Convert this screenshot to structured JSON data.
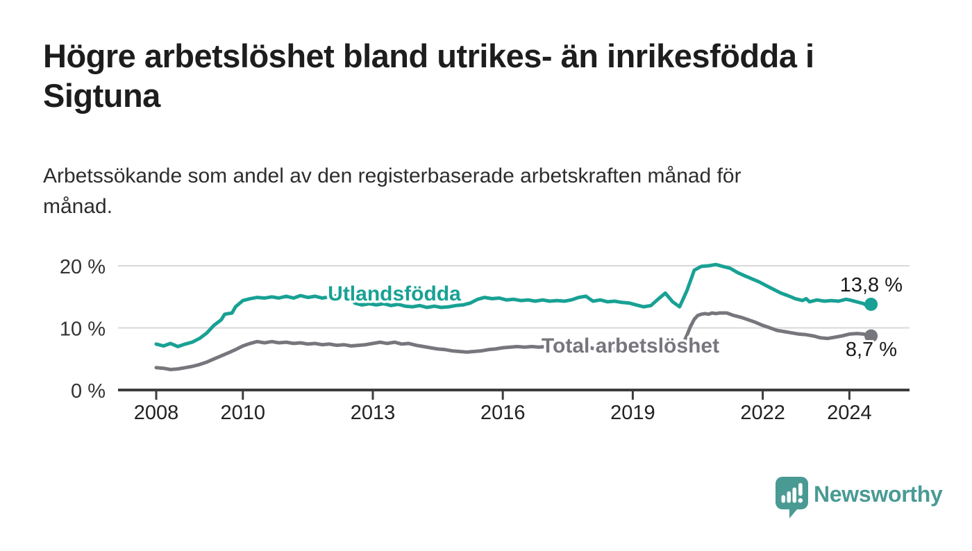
{
  "page": {
    "title_line1": "Högre arbetslöshet bland utrikes- än inrikesfödda i",
    "title_line2": "Sigtuna",
    "subtitle_line1": "Arbetssökande som andel av den registerbaserade arbetskraften månad för",
    "subtitle_line2": "månad."
  },
  "branding": {
    "logo_text": "Newsworthy",
    "logo_color": "#4a9a94",
    "logo_icon": "newsworthy-pin-icon"
  },
  "colors": {
    "background": "#ffffff",
    "title_text": "#1d1d1d",
    "subtitle_text": "#2d2d2d",
    "gridline": "#d8d8d8",
    "axis_line": "#3d3d3d",
    "tick_text": "#222222",
    "value_label_text": "#1a1a1a",
    "series_utlandsfodda": "#18a194",
    "series_total": "#76767d"
  },
  "chart_data": {
    "type": "line",
    "unit": "%",
    "x_axis": {
      "range": [
        2007.1,
        2025.4
      ],
      "ticks": [
        2008,
        2010,
        2013,
        2016,
        2019,
        2022,
        2024
      ],
      "tick_labels": [
        "2008",
        "2010",
        "2013",
        "2016",
        "2019",
        "2022",
        "2024"
      ]
    },
    "y_axis": {
      "range": [
        0,
        22
      ],
      "ticks": [
        0,
        10,
        20
      ],
      "tick_labels": [
        "0 %",
        "10 %",
        "20 %"
      ],
      "gridlines": [
        10,
        20
      ],
      "grid_on": true
    },
    "legend_position": "inline-labels-on-chart",
    "series": [
      {
        "key": "utlandsfodda",
        "name": "Utlandsfödda",
        "color": "#18a194",
        "end_value": 13.8,
        "end_label": "13,8 %",
        "points": [
          [
            2008.0,
            7.4
          ],
          [
            2008.17,
            7.1
          ],
          [
            2008.33,
            7.5
          ],
          [
            2008.5,
            7.0
          ],
          [
            2008.67,
            7.4
          ],
          [
            2008.83,
            7.7
          ],
          [
            2009.0,
            8.3
          ],
          [
            2009.17,
            9.2
          ],
          [
            2009.33,
            10.4
          ],
          [
            2009.5,
            11.3
          ],
          [
            2009.58,
            12.2
          ],
          [
            2009.75,
            12.4
          ],
          [
            2009.83,
            13.4
          ],
          [
            2010.0,
            14.4
          ],
          [
            2010.17,
            14.7
          ],
          [
            2010.33,
            14.9
          ],
          [
            2010.5,
            14.8
          ],
          [
            2010.67,
            15.0
          ],
          [
            2010.83,
            14.8
          ],
          [
            2011.0,
            15.1
          ],
          [
            2011.17,
            14.8
          ],
          [
            2011.33,
            15.2
          ],
          [
            2011.5,
            14.9
          ],
          [
            2011.67,
            15.1
          ],
          [
            2011.83,
            14.8
          ],
          [
            2012.0,
            15.0
          ],
          [
            2012.17,
            15.2
          ],
          [
            2012.33,
            14.9
          ],
          [
            2012.5,
            15.2
          ],
          [
            2012.58,
            14.0
          ],
          [
            2012.75,
            13.7
          ],
          [
            2012.92,
            13.9
          ],
          [
            2013.08,
            13.7
          ],
          [
            2013.25,
            13.9
          ],
          [
            2013.42,
            13.6
          ],
          [
            2013.58,
            13.8
          ],
          [
            2013.75,
            13.5
          ],
          [
            2013.92,
            13.4
          ],
          [
            2014.08,
            13.6
          ],
          [
            2014.25,
            13.3
          ],
          [
            2014.42,
            13.5
          ],
          [
            2014.58,
            13.3
          ],
          [
            2014.75,
            13.4
          ],
          [
            2014.92,
            13.6
          ],
          [
            2015.08,
            13.7
          ],
          [
            2015.25,
            14.0
          ],
          [
            2015.42,
            14.6
          ],
          [
            2015.58,
            14.9
          ],
          [
            2015.75,
            14.7
          ],
          [
            2015.92,
            14.8
          ],
          [
            2016.08,
            14.5
          ],
          [
            2016.25,
            14.6
          ],
          [
            2016.42,
            14.4
          ],
          [
            2016.58,
            14.5
          ],
          [
            2016.75,
            14.3
          ],
          [
            2016.92,
            14.5
          ],
          [
            2017.08,
            14.3
          ],
          [
            2017.25,
            14.4
          ],
          [
            2017.42,
            14.3
          ],
          [
            2017.58,
            14.5
          ],
          [
            2017.75,
            14.9
          ],
          [
            2017.92,
            15.1
          ],
          [
            2018.08,
            14.3
          ],
          [
            2018.25,
            14.5
          ],
          [
            2018.42,
            14.2
          ],
          [
            2018.58,
            14.3
          ],
          [
            2018.75,
            14.1
          ],
          [
            2018.92,
            14.0
          ],
          [
            2019.08,
            13.7
          ],
          [
            2019.25,
            13.4
          ],
          [
            2019.42,
            13.6
          ],
          [
            2019.58,
            14.6
          ],
          [
            2019.75,
            15.6
          ],
          [
            2019.92,
            14.2
          ],
          [
            2020.08,
            13.4
          ],
          [
            2020.25,
            16.0
          ],
          [
            2020.42,
            19.3
          ],
          [
            2020.58,
            19.9
          ],
          [
            2020.75,
            20.0
          ],
          [
            2020.92,
            20.2
          ],
          [
            2021.08,
            19.9
          ],
          [
            2021.25,
            19.6
          ],
          [
            2021.42,
            18.9
          ],
          [
            2021.58,
            18.4
          ],
          [
            2021.75,
            17.9
          ],
          [
            2021.92,
            17.4
          ],
          [
            2022.08,
            16.8
          ],
          [
            2022.25,
            16.2
          ],
          [
            2022.42,
            15.6
          ],
          [
            2022.58,
            15.2
          ],
          [
            2022.75,
            14.7
          ],
          [
            2022.92,
            14.4
          ],
          [
            2023.0,
            14.7
          ],
          [
            2023.08,
            14.2
          ],
          [
            2023.25,
            14.5
          ],
          [
            2023.42,
            14.3
          ],
          [
            2023.58,
            14.4
          ],
          [
            2023.75,
            14.3
          ],
          [
            2023.92,
            14.6
          ],
          [
            2024.0,
            14.5
          ],
          [
            2024.17,
            14.2
          ],
          [
            2024.33,
            13.9
          ],
          [
            2024.42,
            13.5
          ],
          [
            2024.5,
            13.8
          ]
        ]
      },
      {
        "key": "total-arbetsloshet",
        "name": "Total arbetslöshet",
        "color": "#76767d",
        "end_value": 8.7,
        "end_label": "8,7 %",
        "points": [
          [
            2008.0,
            3.6
          ],
          [
            2008.17,
            3.5
          ],
          [
            2008.33,
            3.3
          ],
          [
            2008.5,
            3.4
          ],
          [
            2008.67,
            3.6
          ],
          [
            2008.83,
            3.8
          ],
          [
            2009.0,
            4.1
          ],
          [
            2009.17,
            4.5
          ],
          [
            2009.33,
            5.0
          ],
          [
            2009.5,
            5.5
          ],
          [
            2009.67,
            6.0
          ],
          [
            2009.83,
            6.5
          ],
          [
            2010.0,
            7.1
          ],
          [
            2010.17,
            7.5
          ],
          [
            2010.33,
            7.8
          ],
          [
            2010.5,
            7.6
          ],
          [
            2010.67,
            7.8
          ],
          [
            2010.83,
            7.6
          ],
          [
            2011.0,
            7.7
          ],
          [
            2011.17,
            7.5
          ],
          [
            2011.33,
            7.6
          ],
          [
            2011.5,
            7.4
          ],
          [
            2011.67,
            7.5
          ],
          [
            2011.83,
            7.3
          ],
          [
            2012.0,
            7.4
          ],
          [
            2012.17,
            7.2
          ],
          [
            2012.33,
            7.3
          ],
          [
            2012.5,
            7.1
          ],
          [
            2012.67,
            7.2
          ],
          [
            2012.83,
            7.3
          ],
          [
            2013.0,
            7.5
          ],
          [
            2013.17,
            7.7
          ],
          [
            2013.33,
            7.5
          ],
          [
            2013.5,
            7.7
          ],
          [
            2013.67,
            7.4
          ],
          [
            2013.83,
            7.5
          ],
          [
            2014.0,
            7.2
          ],
          [
            2014.17,
            7.0
          ],
          [
            2014.33,
            6.8
          ],
          [
            2014.5,
            6.6
          ],
          [
            2014.67,
            6.5
          ],
          [
            2014.83,
            6.3
          ],
          [
            2015.0,
            6.2
          ],
          [
            2015.17,
            6.1
          ],
          [
            2015.33,
            6.2
          ],
          [
            2015.5,
            6.3
          ],
          [
            2015.67,
            6.5
          ],
          [
            2015.83,
            6.6
          ],
          [
            2016.0,
            6.8
          ],
          [
            2016.17,
            6.9
          ],
          [
            2016.33,
            7.0
          ],
          [
            2016.5,
            6.9
          ],
          [
            2016.67,
            7.0
          ],
          [
            2016.83,
            6.9
          ],
          [
            2017.0,
            7.0
          ],
          [
            2017.17,
            6.9
          ],
          [
            2017.33,
            6.8
          ],
          [
            2017.5,
            6.9
          ],
          [
            2017.67,
            6.8
          ],
          [
            2017.83,
            6.7
          ],
          [
            2018.0,
            6.8
          ],
          [
            2018.17,
            6.6
          ],
          [
            2018.33,
            6.7
          ],
          [
            2018.5,
            6.5
          ],
          [
            2018.67,
            6.6
          ],
          [
            2018.83,
            6.5
          ],
          [
            2019.0,
            6.4
          ],
          [
            2019.17,
            6.5
          ],
          [
            2019.33,
            6.3
          ],
          [
            2019.5,
            6.4
          ],
          [
            2019.67,
            6.3
          ],
          [
            2019.83,
            6.5
          ],
          [
            2020.0,
            6.6
          ],
          [
            2020.08,
            6.8
          ],
          [
            2020.17,
            7.6
          ],
          [
            2020.25,
            8.8
          ],
          [
            2020.33,
            10.2
          ],
          [
            2020.42,
            11.4
          ],
          [
            2020.5,
            12.0
          ],
          [
            2020.58,
            12.2
          ],
          [
            2020.67,
            12.3
          ],
          [
            2020.75,
            12.2
          ],
          [
            2020.83,
            12.4
          ],
          [
            2020.92,
            12.3
          ],
          [
            2021.0,
            12.4
          ],
          [
            2021.17,
            12.4
          ],
          [
            2021.33,
            12.0
          ],
          [
            2021.5,
            11.7
          ],
          [
            2021.67,
            11.3
          ],
          [
            2021.83,
            10.9
          ],
          [
            2022.0,
            10.4
          ],
          [
            2022.17,
            10.0
          ],
          [
            2022.33,
            9.6
          ],
          [
            2022.5,
            9.4
          ],
          [
            2022.67,
            9.2
          ],
          [
            2022.83,
            9.0
          ],
          [
            2023.0,
            8.9
          ],
          [
            2023.17,
            8.7
          ],
          [
            2023.33,
            8.4
          ],
          [
            2023.5,
            8.3
          ],
          [
            2023.67,
            8.5
          ],
          [
            2023.83,
            8.7
          ],
          [
            2024.0,
            9.0
          ],
          [
            2024.17,
            9.1
          ],
          [
            2024.33,
            9.0
          ],
          [
            2024.42,
            8.8
          ],
          [
            2024.5,
            8.7
          ]
        ]
      }
    ]
  }
}
